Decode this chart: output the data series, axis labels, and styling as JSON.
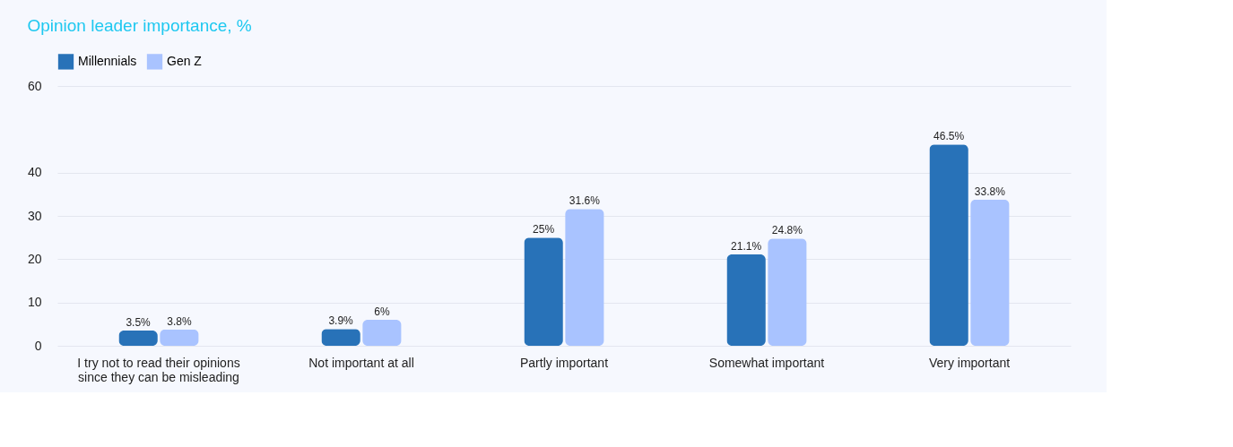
{
  "chart_data": {
    "type": "bar",
    "title": "Opinion leader importance, %",
    "categories": [
      "I try not to read their opinions since they can be misleading",
      "Not important at all",
      "Partly important",
      "Somewhat important",
      "Very important"
    ],
    "series": [
      {
        "name": "Millennials",
        "color": "#2872b8",
        "values": [
          3.5,
          3.9,
          25,
          21.1,
          46.5
        ],
        "value_labels": [
          "3.5%",
          "3.9%",
          "25%",
          "21.1%",
          "46.5%"
        ]
      },
      {
        "name": "Gen Z",
        "color": "#a9c3ff",
        "values": [
          3.8,
          6,
          31.6,
          24.8,
          33.8
        ],
        "value_labels": [
          "3.8%",
          "6%",
          "31.6%",
          "24.8%",
          "33.8%"
        ]
      }
    ],
    "ylim": [
      0,
      60
    ],
    "yticks": [
      0,
      10,
      20,
      30,
      40,
      60
    ],
    "grid": "y",
    "legend": "top"
  }
}
